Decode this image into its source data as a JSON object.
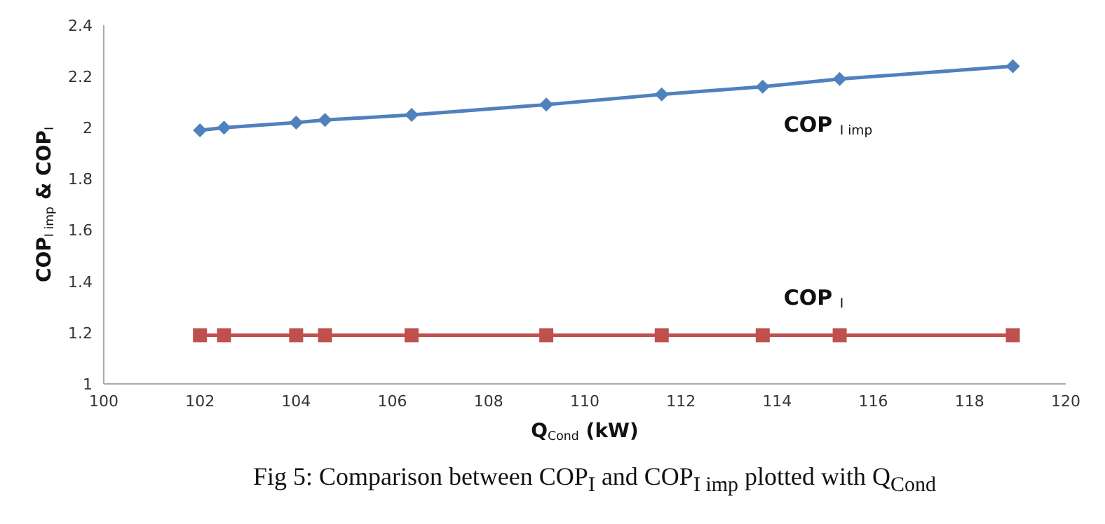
{
  "chart_data": {
    "type": "line",
    "xlabel": "Q$_{Cond}$ (kW)",
    "ylabel": "COP$_{I imp}$ & COP$_{I}$",
    "annotations": [
      "Fig 5: Comparison between COP$_{I}$ and COP$_{I imp}$ plotted with Q$_{Cond}$"
    ],
    "x": [
      102,
      102.5,
      104,
      104.6,
      106.4,
      109.2,
      111.6,
      113.7,
      115.3,
      118.9
    ],
    "series": [
      {
        "name": "COP $_{I imp}$",
        "color": "#4f81bd",
        "marker": "diamond",
        "values": [
          1.99,
          2.0,
          2.02,
          2.03,
          2.05,
          2.09,
          2.13,
          2.16,
          2.19,
          2.24
        ]
      },
      {
        "name": "COP $_{I}$",
        "color": "#c0504d",
        "marker": "square",
        "values": [
          1.19,
          1.19,
          1.19,
          1.19,
          1.19,
          1.19,
          1.19,
          1.19,
          1.19,
          1.19
        ]
      }
    ],
    "xlim": [
      100,
      120
    ],
    "xticks": [
      100,
      102,
      104,
      106,
      108,
      110,
      112,
      114,
      116,
      118,
      120
    ],
    "ylim": [
      1,
      2.4
    ],
    "yticks": [
      1,
      1.2,
      1.4,
      1.6,
      1.8,
      2,
      2.2,
      2.4
    ],
    "grid": false,
    "legend": false
  }
}
